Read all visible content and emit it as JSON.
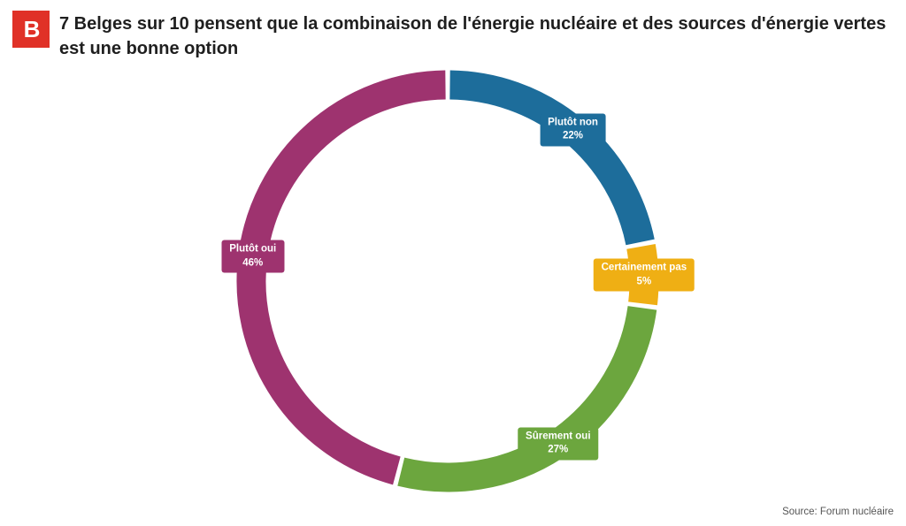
{
  "header": {
    "logo_letter": "B",
    "logo_color": "#e03127",
    "title": "7 Belges sur 10 pensent que la combinaison de l'énergie nucléaire et des sources d'énergie vertes est une bonne option"
  },
  "footer": {
    "source": "Source: Forum nucléaire"
  },
  "chart_data": {
    "type": "pie",
    "subtype": "donut",
    "title": "7 Belges sur 10 pensent que la combinaison de l'énergie nucléaire et des sources d'énergie vertes est une bonne option",
    "start_angle_deg": 0,
    "direction": "clockwise",
    "unit": "%",
    "legend_position": "on-chart",
    "segments": [
      {
        "label": "Plutôt non",
        "value": 22,
        "color": "#1d6d9b"
      },
      {
        "label": "Certainement pas",
        "value": 5,
        "color": "#efaf14"
      },
      {
        "label": "Sûrement oui",
        "value": 27,
        "color": "#6ca63e"
      },
      {
        "label": "Plutôt oui",
        "value": 46,
        "color": "#9e336f"
      }
    ]
  }
}
